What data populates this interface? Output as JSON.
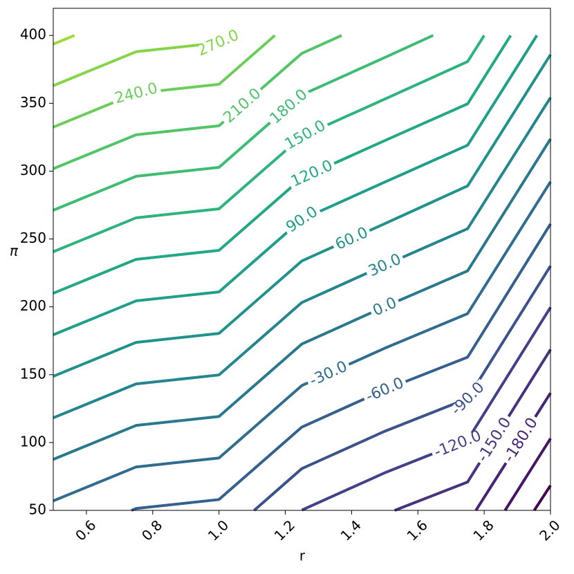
{
  "chart_data": {
    "type": "contour",
    "xlabel": "r",
    "ylabel": "π",
    "xlim": [
      0.5,
      2.0
    ],
    "ylim": [
      50,
      420
    ],
    "xticks": [
      0.6,
      0.8,
      {
        "value": 1,
        "label": "1.0"
      },
      1.2,
      1.4,
      1.6,
      1.8,
      {
        "value": 2,
        "label": "2.0"
      }
    ],
    "yticks": [
      50,
      100,
      150,
      200,
      250,
      300,
      350,
      400
    ],
    "contours": [
      {
        "color": "#a0da39",
        "x": [
          0.5,
          0.564
        ],
        "y": [
          393.6,
          400
        ]
      },
      {
        "level": 270,
        "label": "270.0",
        "color": "#86d549",
        "x": [
          0.5,
          0.75,
          1.0,
          1.025
        ],
        "y": [
          363,
          388,
          394.6,
          400
        ]
      },
      {
        "level": 240,
        "label": "240.0",
        "color": "#6ccd5a",
        "x": [
          0.5,
          0.75,
          1.0,
          1.1685
        ],
        "y": [
          332.4,
          357.4,
          364,
          400
        ]
      },
      {
        "level": 210,
        "label": "210.0",
        "color": "#52c569",
        "x": [
          0.5,
          0.75,
          1.0,
          1.25,
          1.37
        ],
        "y": [
          301.8,
          326.8,
          333.4,
          386.8,
          400
        ]
      },
      {
        "level": 180,
        "label": "180.0",
        "color": "#3dbc74",
        "x": [
          0.5,
          0.75,
          1.0,
          1.25,
          1.5,
          1.646
        ],
        "y": [
          271.2,
          296.2,
          302.8,
          356.2,
          383.7,
          400
        ]
      },
      {
        "level": 150,
        "label": "150.0",
        "color": "#2eb37c",
        "x": [
          0.5,
          0.75,
          1.0,
          1.25,
          1.5,
          1.75,
          1.8
        ],
        "y": [
          240.6,
          265.6,
          272.2,
          325.6,
          353.1,
          380.7,
          400
        ]
      },
      {
        "level": 120,
        "label": "120.0",
        "color": "#22a884",
        "x": [
          0.5,
          0.75,
          1.0,
          1.25,
          1.5,
          1.75,
          1.88
        ],
        "y": [
          210,
          235,
          241.6,
          295,
          322.5,
          349.6,
          400
        ]
      },
      {
        "level": 90,
        "label": "90.0",
        "color": "#1f9e89",
        "x": [
          0.5,
          0.75,
          1.0,
          1.25,
          1.5,
          1.75,
          1.959
        ],
        "y": [
          179.4,
          204.4,
          211,
          264.4,
          291.9,
          319.1,
          400
        ]
      },
      {
        "level": 60,
        "label": "60.0",
        "color": "#21918c",
        "x": [
          0.5,
          0.75,
          1.0,
          1.25,
          1.5,
          1.75,
          2.0
        ],
        "y": [
          148.8,
          173.8,
          180.4,
          233.8,
          261.3,
          289.1,
          385.8
        ]
      },
      {
        "level": 30,
        "label": "30.0",
        "color": "#25858e",
        "x": [
          0.5,
          0.75,
          1.0,
          1.25,
          1.5,
          1.75,
          2.0
        ],
        "y": [
          118.2,
          143.2,
          149.8,
          203.2,
          230.7,
          257.6,
          354.2
        ]
      },
      {
        "level": 0,
        "label": "0.0",
        "color": "#2a788e",
        "x": [
          0.5,
          0.75,
          1.0,
          1.25,
          1.5,
          1.75,
          2.0
        ],
        "y": [
          87.6,
          112.6,
          119.2,
          172.6,
          200.1,
          226.5,
          323.7
        ]
      },
      {
        "level": -30,
        "label": "-30.0",
        "color": "#2f6c8e",
        "x": [
          0.5,
          0.75,
          1.0,
          1.25,
          1.5,
          1.75,
          2.0
        ],
        "y": [
          57,
          82,
          88.6,
          142,
          169.5,
          195,
          292.2
        ]
      },
      {
        "level": -60,
        "label": "-60.0",
        "color": "#355f8d",
        "x": [
          0.736,
          0.75,
          1.0,
          1.25,
          1.5,
          1.75,
          2.0
        ],
        "y": [
          50,
          51.4,
          58,
          111.4,
          138.9,
          162.9,
          261.1
        ]
      },
      {
        "level": -90,
        "label": "-90.0",
        "color": "#3b528b",
        "x": [
          1.106,
          1.25,
          1.5,
          1.75,
          2.0
        ],
        "y": [
          50,
          80.8,
          108.3,
          132.4,
          230.1
        ]
      },
      {
        "level": -120,
        "label": "-120.0",
        "color": "#424086",
        "x": [
          1.25,
          1.5,
          1.75,
          2.0
        ],
        "y": [
          50.2,
          77.7,
          101.9,
          199.6
        ]
      },
      {
        "level": -150,
        "label": "-150.0",
        "color": "#46327e",
        "x": [
          1.53,
          1.75,
          2.0
        ],
        "y": [
          50,
          70.9,
          168.5
        ]
      },
      {
        "level": -180,
        "label": "-180.0",
        "color": "#482475",
        "x": [
          1.775,
          2.0
        ],
        "y": [
          50,
          136.5
        ]
      },
      {
        "color": "#481467",
        "x": [
          1.863,
          2.0
        ],
        "y": [
          50,
          102.9
        ]
      },
      {
        "color": "#440154",
        "x": [
          1.951,
          2.0
        ],
        "y": [
          50,
          68.3
        ]
      }
    ]
  }
}
